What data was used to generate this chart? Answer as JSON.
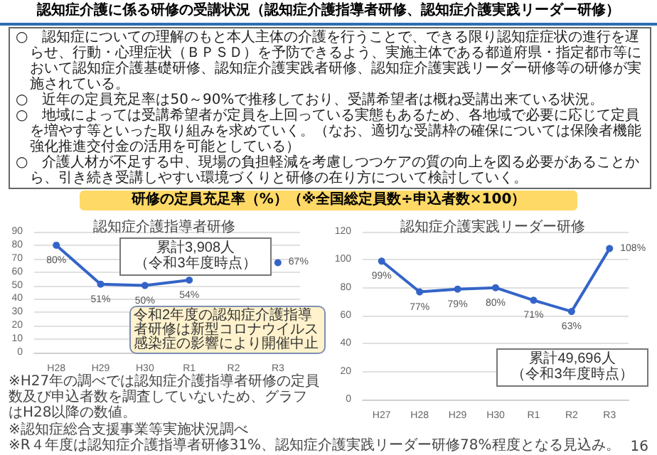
{
  "chart_data": [
    {
      "type": "other",
      "title": "認知症介護に係る研修の受講状況（認知症介護指導者研修、認知症介護実践リーダー研修）",
      "subtitle": "研修の定員充足率（%）（※全国総定員数÷申込者数×100）",
      "annotations": [
        "○　認知症についての理解のもと本人主体の介護を行うことで、できる限り認知症症状の進行を遅らせ、行動・心理症状（ＢＰＳＤ）を予防できるよう、実施主体である都道府県・指定都市等において認知症介護基礎研修、認知症介護実践者研修、認知症介護実践リーダー研修等の研修が実施されている。",
        "○　近年の定員充足率は50～90%で推移しており、受講希望者は概ね受講出来ている状況。",
        "○　地域によっては受講希望者が定員を上回っている実態もあるため、各地域で必要に応じて定員を増やす等といった取り組みを求めていく。（なお、適切な受講枠の確保については保険者機能強化推進交付金の活用を可能としている）",
        "○　介護人材が不足する中、現場の負担軽減を考慮しつつケアの質の向上を図る必要があることから、引き続き受講しやすい環境づくりと研修の在り方について検討していく。"
      ]
    },
    {
      "type": "line",
      "title": "認知症介護指導者研修",
      "categories": [
        "H28",
        "H29",
        "H30",
        "R1",
        "R2",
        "R3"
      ],
      "values": [
        80,
        51,
        50,
        54,
        null,
        67
      ],
      "value_labels": [
        "80%",
        "51%",
        "50%",
        "54%",
        null,
        "67%"
      ],
      "color": "#3464c8",
      "ylim": [
        0,
        90
      ],
      "yticks": [
        0,
        10,
        20,
        30,
        40,
        50,
        60,
        70,
        80,
        90
      ],
      "grid": "y",
      "marker": "circle",
      "annotations": [
        "累計3,908人",
        "（令和3年度時点）",
        "令和2年度の認知症介護指導者研修は新型コロナウイルス感染症の影響により開催中止",
        "※H27年の調べでは認知症介護指導者研修の定員数及び申込者数を調査していないため、グラフはH28以降の数値。"
      ]
    },
    {
      "type": "line",
      "title": "認知症介護実践リーダー研修",
      "categories": [
        "H27",
        "H28",
        "H29",
        "H30",
        "R1",
        "R2",
        "R3"
      ],
      "values": [
        99,
        77,
        79,
        80,
        71,
        63,
        108
      ],
      "value_labels": [
        "99%",
        "77%",
        "79%",
        "80%",
        "71%",
        "63%",
        "108%"
      ],
      "color": "#3464c8",
      "ylim": [
        0,
        120
      ],
      "yticks": [
        0,
        20,
        40,
        60,
        80,
        100,
        120
      ],
      "grid": "y",
      "marker": "circle",
      "annotations": [
        "累計49,696人",
        "（令和3年度時点）"
      ]
    },
    {
      "type": "other",
      "annotations": [
        "※認知症総合支援事業等実施状況調べ",
        "※R４年度は認知症介護指導者研修31%、認知症介護実践リーダー研修78%程度となる見込み。",
        "16"
      ]
    }
  ]
}
